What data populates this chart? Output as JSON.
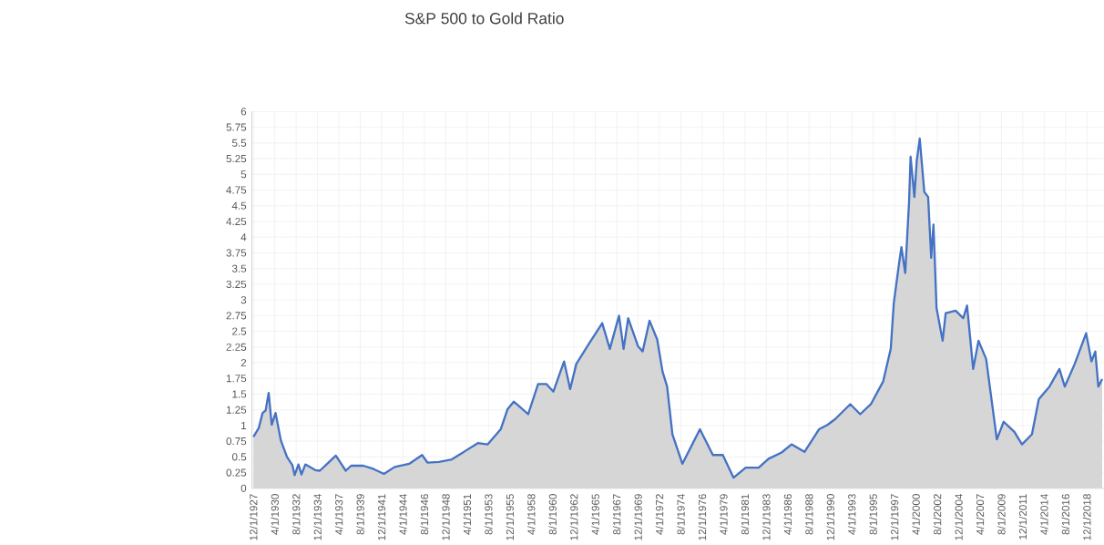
{
  "chart_data": {
    "type": "area",
    "title": "S&P 500 to Gold Ratio",
    "x": [
      "1927-12",
      "1928-07",
      "1928-12",
      "1929-04",
      "1929-08",
      "1929-12",
      "1930-05",
      "1930-12",
      "1931-08",
      "1932-03",
      "1932-06",
      "1932-11",
      "1933-03",
      "1933-08",
      "1934-09",
      "1935-03",
      "1936-12",
      "1938-01",
      "1938-08",
      "1939-12",
      "1941-01",
      "1942-03",
      "1943-05",
      "1944-12",
      "1946-05",
      "1946-12",
      "1948-03",
      "1949-08",
      "1951-01",
      "1952-06",
      "1953-07",
      "1954-12",
      "1955-09",
      "1956-05",
      "1956-11",
      "1957-12",
      "1959-01",
      "1959-12",
      "1960-09",
      "1961-11",
      "1962-07",
      "1963-03",
      "1964-08",
      "1966-01",
      "1966-11",
      "1967-11",
      "1968-05",
      "1968-11",
      "1969-12",
      "1970-06",
      "1971-03",
      "1972-01",
      "1972-08",
      "1973-02",
      "1973-09",
      "1974-07",
      "1974-10",
      "1976-09",
      "1978-02",
      "1979-03",
      "1980-05",
      "1981-09",
      "1983-02",
      "1984-03",
      "1985-08",
      "1986-09",
      "1988-02",
      "1989-09",
      "1990-08",
      "1991-06",
      "1993-02",
      "1994-03",
      "1995-05",
      "1996-09",
      "1997-07",
      "1997-11",
      "1998-06",
      "1998-09",
      "1999-02",
      "1999-07",
      "1999-09",
      "2000-02",
      "2000-05",
      "2000-09",
      "2001-03",
      "2001-08",
      "2001-12",
      "2002-03",
      "2002-07",
      "2003-03",
      "2003-07",
      "2004-08",
      "2005-06",
      "2005-11",
      "2006-07",
      "2007-02",
      "2007-12",
      "2008-07",
      "2009-02",
      "2009-11",
      "2011-01",
      "2011-11",
      "2012-12",
      "2013-09",
      "2014-11",
      "2015-12",
      "2016-07",
      "2017-08",
      "2018-11",
      "2019-06",
      "2019-11",
      "2020-03",
      "2020-08"
    ],
    "series": [
      {
        "color": "#4472c4",
        "values": [
          0.82,
          0.96,
          1.2,
          1.24,
          1.52,
          1.01,
          1.2,
          0.76,
          0.5,
          0.37,
          0.21,
          0.38,
          0.22,
          0.38,
          0.29,
          0.28,
          0.52,
          0.28,
          0.36,
          0.36,
          0.31,
          0.23,
          0.34,
          0.39,
          0.53,
          0.41,
          0.42,
          0.46,
          0.59,
          0.72,
          0.7,
          0.94,
          1.26,
          1.38,
          1.32,
          1.18,
          1.66,
          1.66,
          1.54,
          2.02,
          1.58,
          1.98,
          2.31,
          2.63,
          2.22,
          2.75,
          2.22,
          2.71,
          2.26,
          2.18,
          2.67,
          2.37,
          1.86,
          1.62,
          0.86,
          0.5,
          0.39,
          0.94,
          0.53,
          0.53,
          0.17,
          0.33,
          0.33,
          0.47,
          0.57,
          0.7,
          0.58,
          0.94,
          1.01,
          1.1,
          1.34,
          1.18,
          1.34,
          1.7,
          2.22,
          2.95,
          3.59,
          3.84,
          3.43,
          4.56,
          5.28,
          4.64,
          5.21,
          5.57,
          4.72,
          4.64,
          3.67,
          4.2,
          2.87,
          2.35,
          2.79,
          2.83,
          2.71,
          2.91,
          1.9,
          2.35,
          2.06,
          1.42,
          0.78,
          1.06,
          0.9,
          0.7,
          0.86,
          1.42,
          1.62,
          1.9,
          1.62,
          1.98,
          2.47,
          2.02,
          2.18,
          1.62,
          1.74
        ]
      }
    ],
    "xlim": [
      "1927-10",
      "2020-10"
    ],
    "xticks": [
      {
        "value": "1927-12",
        "label": "12/1/1927"
      },
      {
        "value": "1930-04",
        "label": "4/1/1930"
      },
      {
        "value": "1932-08",
        "label": "8/1/1932"
      },
      {
        "value": "1934-12",
        "label": "12/1/1934"
      },
      {
        "value": "1937-04",
        "label": "4/1/1937"
      },
      {
        "value": "1939-08",
        "label": "8/1/1939"
      },
      {
        "value": "1941-12",
        "label": "12/1/1941"
      },
      {
        "value": "1944-04",
        "label": "4/1/1944"
      },
      {
        "value": "1946-08",
        "label": "8/1/1946"
      },
      {
        "value": "1948-12",
        "label": "12/1/1948"
      },
      {
        "value": "1951-04",
        "label": "4/1/1951"
      },
      {
        "value": "1953-08",
        "label": "8/1/1953"
      },
      {
        "value": "1955-12",
        "label": "12/1/1955"
      },
      {
        "value": "1958-04",
        "label": "4/1/1958"
      },
      {
        "value": "1960-08",
        "label": "8/1/1960"
      },
      {
        "value": "1962-12",
        "label": "12/1/1962"
      },
      {
        "value": "1965-04",
        "label": "4/1/1965"
      },
      {
        "value": "1967-08",
        "label": "8/1/1967"
      },
      {
        "value": "1969-12",
        "label": "12/1/1969"
      },
      {
        "value": "1972-04",
        "label": "4/1/1972"
      },
      {
        "value": "1974-08",
        "label": "8/1/1974"
      },
      {
        "value": "1976-12",
        "label": "12/1/1976"
      },
      {
        "value": "1979-04",
        "label": "4/1/1979"
      },
      {
        "value": "1981-08",
        "label": "8/1/1981"
      },
      {
        "value": "1983-12",
        "label": "12/1/1983"
      },
      {
        "value": "1986-04",
        "label": "4/1/1986"
      },
      {
        "value": "1988-08",
        "label": "8/1/1988"
      },
      {
        "value": "1990-12",
        "label": "12/1/1990"
      },
      {
        "value": "1993-04",
        "label": "4/1/1993"
      },
      {
        "value": "1995-08",
        "label": "8/1/1995"
      },
      {
        "value": "1997-12",
        "label": "12/1/1997"
      },
      {
        "value": "2000-04",
        "label": "4/1/2000"
      },
      {
        "value": "2002-08",
        "label": "8/1/2002"
      },
      {
        "value": "2004-12",
        "label": "12/1/2004"
      },
      {
        "value": "2007-04",
        "label": "4/1/2007"
      },
      {
        "value": "2009-08",
        "label": "8/1/2009"
      },
      {
        "value": "2011-12",
        "label": "12/1/2011"
      },
      {
        "value": "2014-04",
        "label": "4/1/2014"
      },
      {
        "value": "2016-08",
        "label": "8/1/2016"
      },
      {
        "value": "2018-12",
        "label": "12/1/2018"
      }
    ],
    "ylim": [
      0,
      6
    ],
    "yticks": [
      0,
      0.25,
      0.5,
      0.75,
      1,
      1.25,
      1.5,
      1.75,
      2,
      2.25,
      2.5,
      2.75,
      3,
      3.25,
      3.5,
      3.75,
      4,
      4.25,
      4.5,
      4.75,
      5,
      5.25,
      5.5,
      5.75,
      6
    ],
    "grid": true
  }
}
